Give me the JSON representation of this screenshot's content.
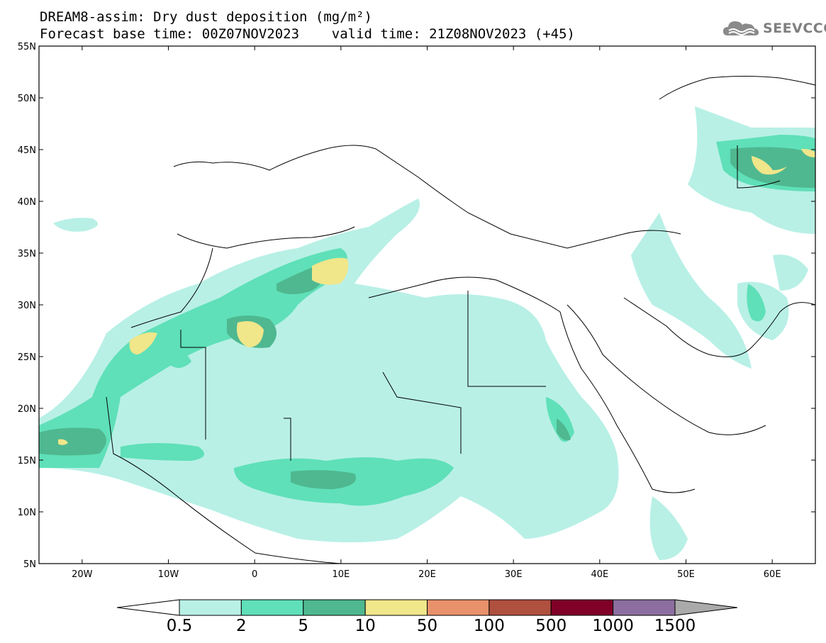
{
  "title": {
    "line1": "DREAM8-assim: Dry dust deposition (mg/m²)",
    "line2": "Forecast base time: 00Z07NOV2023    valid time: 21Z08NOV2023 (+45)"
  },
  "logo": {
    "text": "SEEVCCC",
    "icon": "cloud-icon"
  },
  "axes": {
    "lat_labels": [
      "55N",
      "50N",
      "45N",
      "40N",
      "35N",
      "30N",
      "25N",
      "20N",
      "15N",
      "10N",
      "5N"
    ],
    "lon_labels": [
      "20W",
      "10W",
      "0",
      "10E",
      "20E",
      "30E",
      "40E",
      "50E",
      "60E"
    ],
    "lat_range": [
      5,
      55
    ],
    "lon_range": [
      -25,
      65
    ]
  },
  "colorbar": {
    "labels": [
      "0.5",
      "2",
      "5",
      "10",
      "50",
      "100",
      "500",
      "1000",
      "1500"
    ],
    "colors": [
      "#ffffff",
      "#b8f0e6",
      "#5fe0b8",
      "#4fb890",
      "#f0e68a",
      "#e8916a",
      "#b0503f",
      "#800028",
      "#8c6fa0",
      "#aaaaaa"
    ]
  }
}
